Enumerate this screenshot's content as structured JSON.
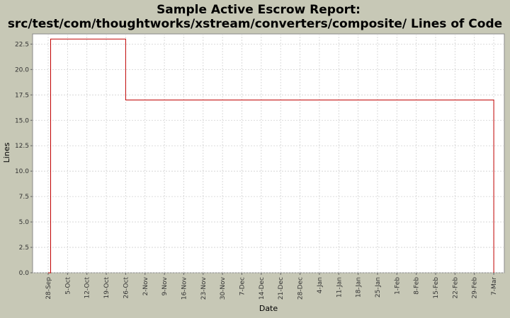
{
  "chart_data": {
    "type": "line",
    "step": true,
    "title_line1": "Sample Active Escrow Report:",
    "title_line2": "src/test/com/thoughtworks/xstream/converters/composite/ Lines of Code",
    "xlabel": "Date",
    "ylabel": "Lines",
    "ylim": [
      0,
      23.5
    ],
    "yticks": [
      "0.0",
      "2.5",
      "5.0",
      "7.5",
      "10.0",
      "12.5",
      "15.0",
      "17.5",
      "20.0",
      "22.5"
    ],
    "xticks": [
      "28-Sep",
      "5-Oct",
      "12-Oct",
      "19-Oct",
      "26-Oct",
      "2-Nov",
      "9-Nov",
      "16-Nov",
      "23-Nov",
      "30-Nov",
      "7-Dec",
      "14-Dec",
      "21-Dec",
      "28-Dec",
      "4-Jan",
      "11-Jan",
      "18-Jan",
      "25-Jan",
      "1-Feb",
      "8-Feb",
      "15-Feb",
      "22-Feb",
      "29-Feb",
      "7-Mar"
    ],
    "grid": true,
    "colors": {
      "plot_bg": "#ffffff",
      "page_bg": "#c7c8b6",
      "line": "#c00000",
      "grid": "#d0d0d0"
    },
    "series": [
      {
        "x": [
          "28-Sep",
          "29-Sep",
          "29-Sep",
          "26-Oct",
          "26-Oct",
          "7-Mar",
          "7-Mar"
        ],
        "values": [
          0,
          0,
          23,
          23,
          17,
          17,
          0
        ]
      }
    ]
  }
}
